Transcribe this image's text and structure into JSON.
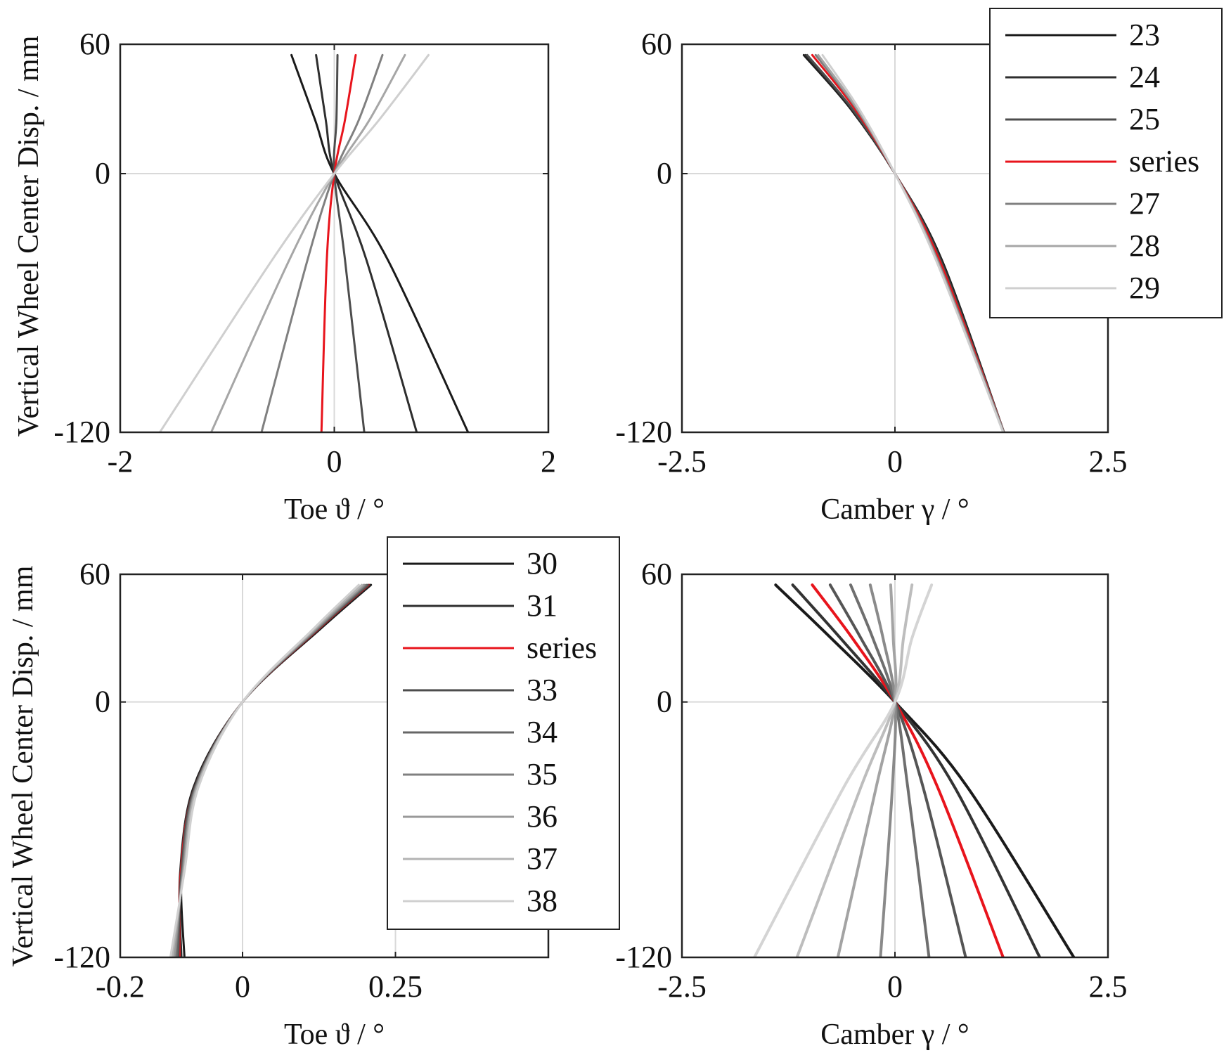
{
  "shared_ylabel": "Vertical Wheel Center Disp. / mm",
  "chart_data": [
    {
      "id": "top-left",
      "type": "line",
      "xlabel": "Toe ϑ / °",
      "ylabel": "Vertical Wheel Center Disp. / mm",
      "xlim": [
        -2,
        2
      ],
      "ylim": [
        -120,
        60
      ],
      "xticks": [
        -2,
        0,
        2
      ],
      "xtick_labels": [
        "-2",
        "0",
        "2"
      ],
      "yticks": [
        -120,
        0,
        60
      ],
      "ytick_labels": [
        "-120",
        "0",
        "60"
      ],
      "legend": null,
      "series": [
        {
          "name": "23",
          "color": "#1a1a1a",
          "points": [
            [
              -0.4,
              55
            ],
            [
              -0.18,
              25
            ],
            [
              0,
              0
            ],
            [
              0.5,
              -40
            ],
            [
              1.25,
              -120
            ]
          ]
        },
        {
          "name": "24",
          "color": "#2e2e2e",
          "points": [
            [
              -0.17,
              55
            ],
            [
              -0.08,
              25
            ],
            [
              0,
              0
            ],
            [
              0.3,
              -40
            ],
            [
              0.77,
              -120
            ]
          ]
        },
        {
          "name": "25",
          "color": "#4d4d4d",
          "points": [
            [
              0.03,
              55
            ],
            [
              0.02,
              25
            ],
            [
              0,
              0
            ],
            [
              0.1,
              -40
            ],
            [
              0.28,
              -120
            ]
          ]
        },
        {
          "name": "series",
          "color": "#e8141c",
          "points": [
            [
              0.2,
              55
            ],
            [
              0.1,
              25
            ],
            [
              0,
              0
            ],
            [
              -0.07,
              -40
            ],
            [
              -0.12,
              -120
            ]
          ]
        },
        {
          "name": "27",
          "color": "#808080",
          "points": [
            [
              0.45,
              55
            ],
            [
              0.23,
              25
            ],
            [
              0,
              0
            ],
            [
              -0.25,
              -40
            ],
            [
              -0.68,
              -120
            ]
          ]
        },
        {
          "name": "28",
          "color": "#a6a6a6",
          "points": [
            [
              0.66,
              55
            ],
            [
              0.33,
              25
            ],
            [
              0,
              0
            ],
            [
              -0.42,
              -40
            ],
            [
              -1.15,
              -120
            ]
          ]
        },
        {
          "name": "29",
          "color": "#cfcfcf",
          "points": [
            [
              0.88,
              55
            ],
            [
              0.42,
              25
            ],
            [
              0,
              0
            ],
            [
              -0.58,
              -40
            ],
            [
              -1.63,
              -120
            ]
          ]
        }
      ]
    },
    {
      "id": "top-right",
      "type": "line",
      "xlabel": "Camber γ / °",
      "ylabel": "",
      "xlim": [
        -2.5,
        2.5
      ],
      "ylim": [
        -120,
        60
      ],
      "xticks": [
        -2.5,
        0,
        2.5
      ],
      "xtick_labels": [
        "-2.5",
        "0",
        "2.5"
      ],
      "yticks": [
        -120,
        0,
        60
      ],
      "ytick_labels": [
        "-120",
        "0",
        "60"
      ],
      "legend": {
        "placement": "top-right",
        "entries": [
          "23",
          "24",
          "25",
          "series",
          "27",
          "28",
          "29"
        ]
      },
      "series": [
        {
          "name": "23",
          "color": "#1a1a1a",
          "points": [
            [
              -1.07,
              55
            ],
            [
              -0.52,
              30
            ],
            [
              0,
              0
            ],
            [
              0.55,
              -40
            ],
            [
              1.28,
              -120
            ]
          ]
        },
        {
          "name": "24",
          "color": "#2e2e2e",
          "points": [
            [
              -1.05,
              55
            ],
            [
              -0.51,
              30
            ],
            [
              0,
              0
            ],
            [
              0.54,
              -40
            ],
            [
              1.28,
              -120
            ]
          ]
        },
        {
          "name": "25",
          "color": "#4d4d4d",
          "points": [
            [
              -1.03,
              55
            ],
            [
              -0.5,
              30
            ],
            [
              0,
              0
            ],
            [
              0.53,
              -40
            ],
            [
              1.28,
              -120
            ]
          ]
        },
        {
          "name": "series",
          "color": "#e8141c",
          "points": [
            [
              -0.97,
              55
            ],
            [
              -0.47,
              30
            ],
            [
              0,
              0
            ],
            [
              0.52,
              -40
            ],
            [
              1.28,
              -120
            ]
          ]
        },
        {
          "name": "27",
          "color": "#808080",
          "points": [
            [
              -0.93,
              55
            ],
            [
              -0.45,
              30
            ],
            [
              0,
              0
            ],
            [
              0.5,
              -40
            ],
            [
              1.28,
              -120
            ]
          ]
        },
        {
          "name": "28",
          "color": "#a6a6a6",
          "points": [
            [
              -0.9,
              55
            ],
            [
              -0.44,
              30
            ],
            [
              0,
              0
            ],
            [
              0.49,
              -40
            ],
            [
              1.27,
              -120
            ]
          ]
        },
        {
          "name": "29",
          "color": "#cfcfcf",
          "points": [
            [
              -0.85,
              55
            ],
            [
              -0.42,
              30
            ],
            [
              0,
              0
            ],
            [
              0.48,
              -40
            ],
            [
              1.27,
              -120
            ]
          ]
        }
      ]
    },
    {
      "id": "bottom-left",
      "type": "line",
      "xlabel": "Toe ϑ / °",
      "ylabel": "Vertical Wheel Center Disp. / mm",
      "xlim": [
        -0.2,
        0.5
      ],
      "ylim": [
        -120,
        60
      ],
      "xticks": [
        -0.2,
        0,
        0.25
      ],
      "xtick_labels": [
        "-0.2",
        "0",
        "0.25"
      ],
      "yticks": [
        -120,
        0,
        60
      ],
      "ytick_labels": [
        "-120",
        "0",
        "60"
      ],
      "legend": {
        "placement": "top-right",
        "entries": [
          "30",
          "31",
          "series",
          "33",
          "34",
          "35",
          "36",
          "37",
          "38"
        ]
      },
      "series": [
        {
          "name": "30",
          "color": "#1a1a1a",
          "points": [
            [
              0.21,
              55
            ],
            [
              0.13,
              35
            ],
            [
              0,
              0
            ],
            [
              -0.08,
              -40
            ],
            [
              -0.1,
              -80
            ],
            [
              -0.095,
              -120
            ]
          ]
        },
        {
          "name": "31",
          "color": "#2e2e2e",
          "points": [
            [
              0.208,
              55
            ],
            [
              0.128,
              35
            ],
            [
              0,
              0
            ],
            [
              -0.079,
              -40
            ],
            [
              -0.102,
              -80
            ],
            [
              -0.1,
              -120
            ]
          ]
        },
        {
          "name": "series",
          "color": "#e8141c",
          "points": [
            [
              0.206,
              55
            ],
            [
              0.127,
              35
            ],
            [
              0,
              0
            ],
            [
              -0.078,
              -40
            ],
            [
              -0.101,
              -80
            ],
            [
              -0.103,
              -120
            ]
          ]
        },
        {
          "name": "33",
          "color": "#4d4d4d",
          "points": [
            [
              0.205,
              55
            ],
            [
              0.126,
              35
            ],
            [
              0,
              0
            ],
            [
              -0.078,
              -40
            ],
            [
              -0.1,
              -80
            ],
            [
              -0.105,
              -120
            ]
          ]
        },
        {
          "name": "34",
          "color": "#666666",
          "points": [
            [
              0.203,
              55
            ],
            [
              0.125,
              35
            ],
            [
              0,
              0
            ],
            [
              -0.077,
              -40
            ],
            [
              -0.099,
              -80
            ],
            [
              -0.107,
              -120
            ]
          ]
        },
        {
          "name": "35",
          "color": "#808080",
          "points": [
            [
              0.2,
              55
            ],
            [
              0.124,
              35
            ],
            [
              0,
              0
            ],
            [
              -0.076,
              -40
            ],
            [
              -0.098,
              -80
            ],
            [
              -0.11,
              -120
            ]
          ]
        },
        {
          "name": "36",
          "color": "#999999",
          "points": [
            [
              0.198,
              55
            ],
            [
              0.122,
              35
            ],
            [
              0,
              0
            ],
            [
              -0.075,
              -40
            ],
            [
              -0.097,
              -80
            ],
            [
              -0.112,
              -120
            ]
          ]
        },
        {
          "name": "37",
          "color": "#b3b3b3",
          "points": [
            [
              0.195,
              55
            ],
            [
              0.12,
              35
            ],
            [
              0,
              0
            ],
            [
              -0.074,
              -40
            ],
            [
              -0.096,
              -80
            ],
            [
              -0.115,
              -120
            ]
          ]
        },
        {
          "name": "38",
          "color": "#d0d0d0",
          "points": [
            [
              0.19,
              55
            ],
            [
              0.118,
              35
            ],
            [
              0,
              0
            ],
            [
              -0.072,
              -40
            ],
            [
              -0.095,
              -80
            ],
            [
              -0.118,
              -120
            ]
          ]
        }
      ]
    },
    {
      "id": "bottom-right",
      "type": "line",
      "xlabel": "Camber γ / °",
      "ylabel": "",
      "xlim": [
        -2.5,
        2.5
      ],
      "ylim": [
        -120,
        60
      ],
      "xticks": [
        -2.5,
        0,
        2.5
      ],
      "xtick_labels": [
        "-2.5",
        "0",
        "2.5"
      ],
      "yticks": [
        -120,
        0,
        60
      ],
      "ytick_labels": [
        "-120",
        "0",
        "60"
      ],
      "legend": null,
      "series": [
        {
          "name": "30",
          "color": "#1a1a1a",
          "points": [
            [
              -1.4,
              55
            ],
            [
              -0.75,
              30
            ],
            [
              0,
              0
            ],
            [
              0.85,
              -40
            ],
            [
              2.1,
              -120
            ]
          ]
        },
        {
          "name": "31",
          "color": "#333333",
          "points": [
            [
              -1.2,
              55
            ],
            [
              -0.64,
              30
            ],
            [
              0,
              0
            ],
            [
              0.7,
              -40
            ],
            [
              1.7,
              -120
            ]
          ]
        },
        {
          "name": "series",
          "color": "#e8141c",
          "points": [
            [
              -0.97,
              55
            ],
            [
              -0.5,
              30
            ],
            [
              0,
              0
            ],
            [
              0.5,
              -40
            ],
            [
              1.27,
              -120
            ]
          ]
        },
        {
          "name": "33",
          "color": "#555555",
          "points": [
            [
              -0.76,
              55
            ],
            [
              -0.4,
              30
            ],
            [
              0,
              0
            ],
            [
              0.33,
              -40
            ],
            [
              0.83,
              -120
            ]
          ]
        },
        {
          "name": "34",
          "color": "#6f6f6f",
          "points": [
            [
              -0.52,
              55
            ],
            [
              -0.26,
              30
            ],
            [
              0,
              0
            ],
            [
              0.15,
              -40
            ],
            [
              0.4,
              -120
            ]
          ]
        },
        {
          "name": "35",
          "color": "#8a8a8a",
          "points": [
            [
              -0.29,
              55
            ],
            [
              -0.14,
              30
            ],
            [
              0,
              0
            ],
            [
              -0.03,
              -40
            ],
            [
              -0.17,
              -120
            ]
          ]
        },
        {
          "name": "36",
          "color": "#a3a3a3",
          "points": [
            [
              -0.05,
              55
            ],
            [
              -0.02,
              30
            ],
            [
              0,
              0
            ],
            [
              -0.22,
              -40
            ],
            [
              -0.67,
              -120
            ]
          ]
        },
        {
          "name": "37",
          "color": "#bdbdbd",
          "points": [
            [
              0.2,
              55
            ],
            [
              0.1,
              30
            ],
            [
              0,
              0
            ],
            [
              -0.4,
              -40
            ],
            [
              -1.15,
              -120
            ]
          ]
        },
        {
          "name": "38",
          "color": "#d4d4d4",
          "points": [
            [
              0.43,
              55
            ],
            [
              0.2,
              30
            ],
            [
              0,
              0
            ],
            [
              -0.6,
              -40
            ],
            [
              -1.65,
              -120
            ]
          ]
        }
      ]
    }
  ]
}
